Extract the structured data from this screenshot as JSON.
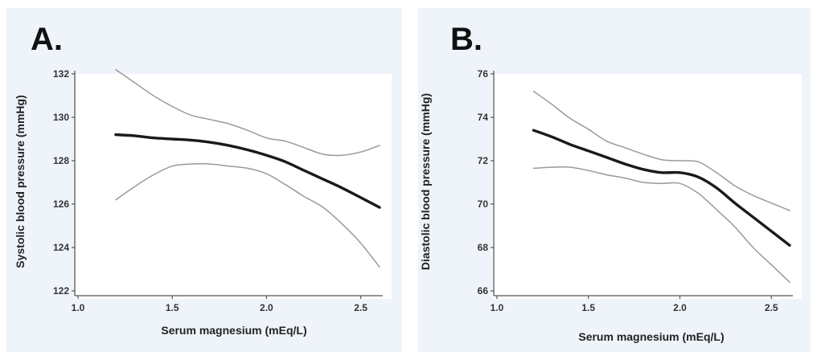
{
  "chart_data": [
    {
      "type": "line",
      "panel_label": "A.",
      "xlabel": "Serum magnesium (mEq/L)",
      "ylabel": "Systolic blood pressure (mmHg)",
      "xlim": [
        1.0,
        2.6
      ],
      "ylim": [
        122,
        132
      ],
      "x_ticks": [
        "1.0",
        "1.5",
        "2.0",
        "2.5"
      ],
      "y_ticks": [
        "122",
        "124",
        "126",
        "128",
        "130",
        "132"
      ],
      "x": [
        1.2,
        1.3,
        1.4,
        1.5,
        1.6,
        1.7,
        1.8,
        1.9,
        2.0,
        2.1,
        2.2,
        2.3,
        2.4,
        2.5,
        2.6
      ],
      "series": [
        {
          "name": "estimate",
          "values": [
            129.2,
            129.15,
            129.05,
            129.0,
            128.95,
            128.85,
            128.7,
            128.5,
            128.25,
            127.95,
            127.55,
            127.15,
            126.75,
            126.3,
            125.85
          ]
        },
        {
          "name": "upper CI",
          "values": [
            132.2,
            131.6,
            131.0,
            130.5,
            130.1,
            129.9,
            129.7,
            129.4,
            129.05,
            128.9,
            128.6,
            128.3,
            128.25,
            128.4,
            128.7
          ]
        },
        {
          "name": "lower CI",
          "values": [
            126.2,
            126.8,
            127.35,
            127.75,
            127.85,
            127.85,
            127.75,
            127.65,
            127.4,
            126.9,
            126.35,
            125.85,
            125.1,
            124.2,
            123.1
          ]
        }
      ]
    },
    {
      "type": "line",
      "panel_label": "B.",
      "xlabel": "Serum magnesium (mEq/L)",
      "ylabel": "Diastolic blood pressure (mmHg)",
      "xlim": [
        1.0,
        2.6
      ],
      "ylim": [
        66,
        76
      ],
      "x_ticks": [
        "1.0",
        "1.5",
        "2.0",
        "2.5"
      ],
      "y_ticks": [
        "66",
        "68",
        "70",
        "72",
        "74",
        "76"
      ],
      "x": [
        1.2,
        1.3,
        1.4,
        1.5,
        1.6,
        1.7,
        1.8,
        1.9,
        2.0,
        2.1,
        2.2,
        2.3,
        2.4,
        2.5,
        2.6
      ],
      "series": [
        {
          "name": "estimate",
          "values": [
            73.4,
            73.1,
            72.75,
            72.45,
            72.15,
            71.85,
            71.6,
            71.45,
            71.45,
            71.25,
            70.75,
            70.05,
            69.4,
            68.75,
            68.1
          ]
        },
        {
          "name": "upper CI",
          "values": [
            75.2,
            74.6,
            73.95,
            73.45,
            72.9,
            72.6,
            72.3,
            72.05,
            72.0,
            71.95,
            71.45,
            70.85,
            70.4,
            70.05,
            69.7
          ]
        },
        {
          "name": "lower CI",
          "values": [
            71.65,
            71.7,
            71.7,
            71.55,
            71.35,
            71.2,
            71.0,
            70.95,
            70.95,
            70.5,
            69.75,
            68.95,
            68.0,
            67.2,
            66.4
          ]
        }
      ]
    }
  ]
}
